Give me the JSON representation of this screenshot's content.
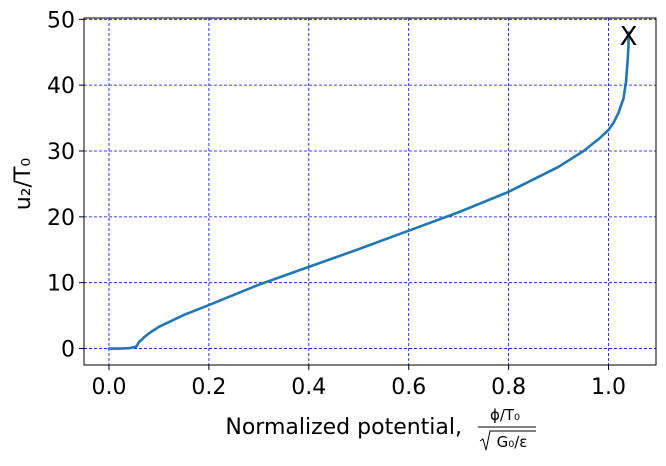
{
  "chart_data": {
    "type": "line",
    "title": "",
    "xlabel": "Normalized potential,",
    "xlabel_math": {
      "numerator": "ϕ/T₀",
      "denominator": "G₀/ε"
    },
    "ylabel": "u₂/T₀",
    "xlim": [
      -0.05,
      1.095
    ],
    "ylim": [
      -2.5,
      50.2
    ],
    "xticks": [
      0.0,
      0.2,
      0.4,
      0.6,
      0.8,
      1.0
    ],
    "xtick_labels": [
      "0.0",
      "0.2",
      "0.4",
      "0.6",
      "0.8",
      "1.0"
    ],
    "yticks": [
      0,
      10,
      20,
      30,
      40,
      50
    ],
    "ytick_labels": [
      "0",
      "10",
      "20",
      "30",
      "40",
      "50"
    ],
    "grid": true,
    "grid_color": "#0000ff",
    "line_color": "#1f77b4",
    "series": [
      {
        "x": [
          0.0,
          0.02,
          0.04,
          0.055,
          0.06,
          0.065,
          0.07,
          0.08,
          0.1,
          0.15,
          0.2,
          0.3,
          0.4,
          0.5,
          0.6,
          0.7,
          0.8,
          0.9,
          0.95,
          0.98,
          1.0,
          1.01,
          1.02,
          1.03,
          1.035,
          1.038,
          1.04,
          1.04
        ],
        "y": [
          0.0,
          0.0,
          0.05,
          0.3,
          1.0,
          1.3,
          1.7,
          2.3,
          3.3,
          5.1,
          6.6,
          9.7,
          12.4,
          15.1,
          17.9,
          20.7,
          23.8,
          27.6,
          30.0,
          31.8,
          33.2,
          34.3,
          35.8,
          38.0,
          40.5,
          43.5,
          46.0,
          48.0
        ]
      }
    ],
    "annotations": [
      {
        "text": "X",
        "x": 1.04,
        "y": 47.5
      }
    ]
  }
}
